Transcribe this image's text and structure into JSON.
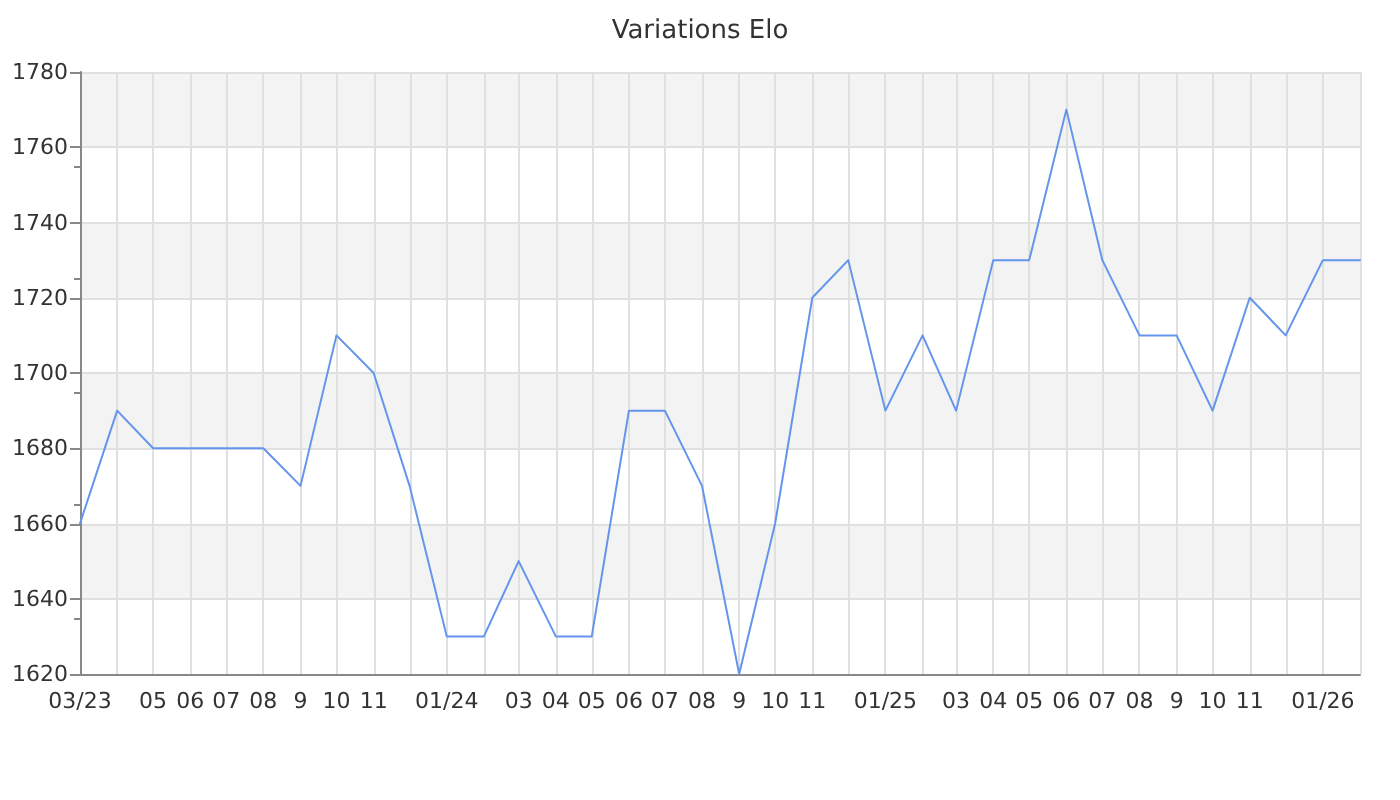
{
  "chart_data": {
    "type": "line",
    "title": "Variations Elo",
    "x": [
      "2023-03",
      "2023-04",
      "2023-05",
      "2023-06",
      "2023-07",
      "2023-08",
      "2023-09",
      "2023-10",
      "2023-11",
      "2023-12",
      "2024-01",
      "2024-02",
      "2024-03",
      "2024-04",
      "2024-05",
      "2024-06",
      "2024-07",
      "2024-08",
      "2024-09",
      "2024-10",
      "2024-11",
      "2024-12",
      "2025-01",
      "2025-02",
      "2025-03",
      "2025-04",
      "2025-05",
      "2025-06",
      "2025-07",
      "2025-08",
      "2025-09",
      "2025-10",
      "2025-11",
      "2025-12",
      "2026-01",
      "2026-02"
    ],
    "values": [
      1660,
      1690,
      1680,
      1680,
      1680,
      1680,
      1670,
      1710,
      1700,
      1670,
      1630,
      1630,
      1650,
      1630,
      1630,
      1690,
      1690,
      1670,
      1620,
      1660,
      1720,
      1730,
      1690,
      1710,
      1690,
      1730,
      1730,
      1770,
      1730,
      1710,
      1710,
      1690,
      1720,
      1710,
      1730,
      1730
    ],
    "color": "#6495ed",
    "xlim": [
      "2023-03",
      "2026-02"
    ],
    "xticks": [
      {
        "value": "2023-03",
        "label": "03/23"
      },
      {
        "value": "2023-04",
        "label": null
      },
      {
        "value": "2023-05",
        "label": "05"
      },
      {
        "value": "2023-06",
        "label": "06"
      },
      {
        "value": "2023-07",
        "label": "07"
      },
      {
        "value": "2023-08",
        "label": "08"
      },
      {
        "value": "2023-09",
        "label": "9"
      },
      {
        "value": "2023-10",
        "label": "10"
      },
      {
        "value": "2023-11",
        "label": "11"
      },
      {
        "value": "2023-12",
        "label": null
      },
      {
        "value": "2024-01",
        "label": "01/24"
      },
      {
        "value": "2024-02",
        "label": null
      },
      {
        "value": "2024-03",
        "label": "03"
      },
      {
        "value": "2024-04",
        "label": "04"
      },
      {
        "value": "2024-05",
        "label": "05"
      },
      {
        "value": "2024-06",
        "label": "06"
      },
      {
        "value": "2024-07",
        "label": "07"
      },
      {
        "value": "2024-08",
        "label": "08"
      },
      {
        "value": "2024-09",
        "label": "9"
      },
      {
        "value": "2024-10",
        "label": "10"
      },
      {
        "value": "2024-11",
        "label": "11"
      },
      {
        "value": "2024-12",
        "label": null
      },
      {
        "value": "2025-01",
        "label": "01/25"
      },
      {
        "value": "2025-02",
        "label": null
      },
      {
        "value": "2025-03",
        "label": "03"
      },
      {
        "value": "2025-04",
        "label": "04"
      },
      {
        "value": "2025-05",
        "label": "05"
      },
      {
        "value": "2025-06",
        "label": "06"
      },
      {
        "value": "2025-07",
        "label": "07"
      },
      {
        "value": "2025-08",
        "label": "08"
      },
      {
        "value": "2025-09",
        "label": "9"
      },
      {
        "value": "2025-10",
        "label": "10"
      },
      {
        "value": "2025-11",
        "label": "11"
      },
      {
        "value": "2025-12",
        "label": null
      },
      {
        "value": "2026-01",
        "label": "01/26"
      },
      {
        "value": "2026-02",
        "label": null
      }
    ],
    "ylim": [
      1620,
      1780
    ],
    "yticks": [
      1620,
      1640,
      1660,
      1680,
      1700,
      1720,
      1740,
      1760,
      1780
    ],
    "grid": true,
    "marker": "none",
    "line_style": "solid"
  }
}
